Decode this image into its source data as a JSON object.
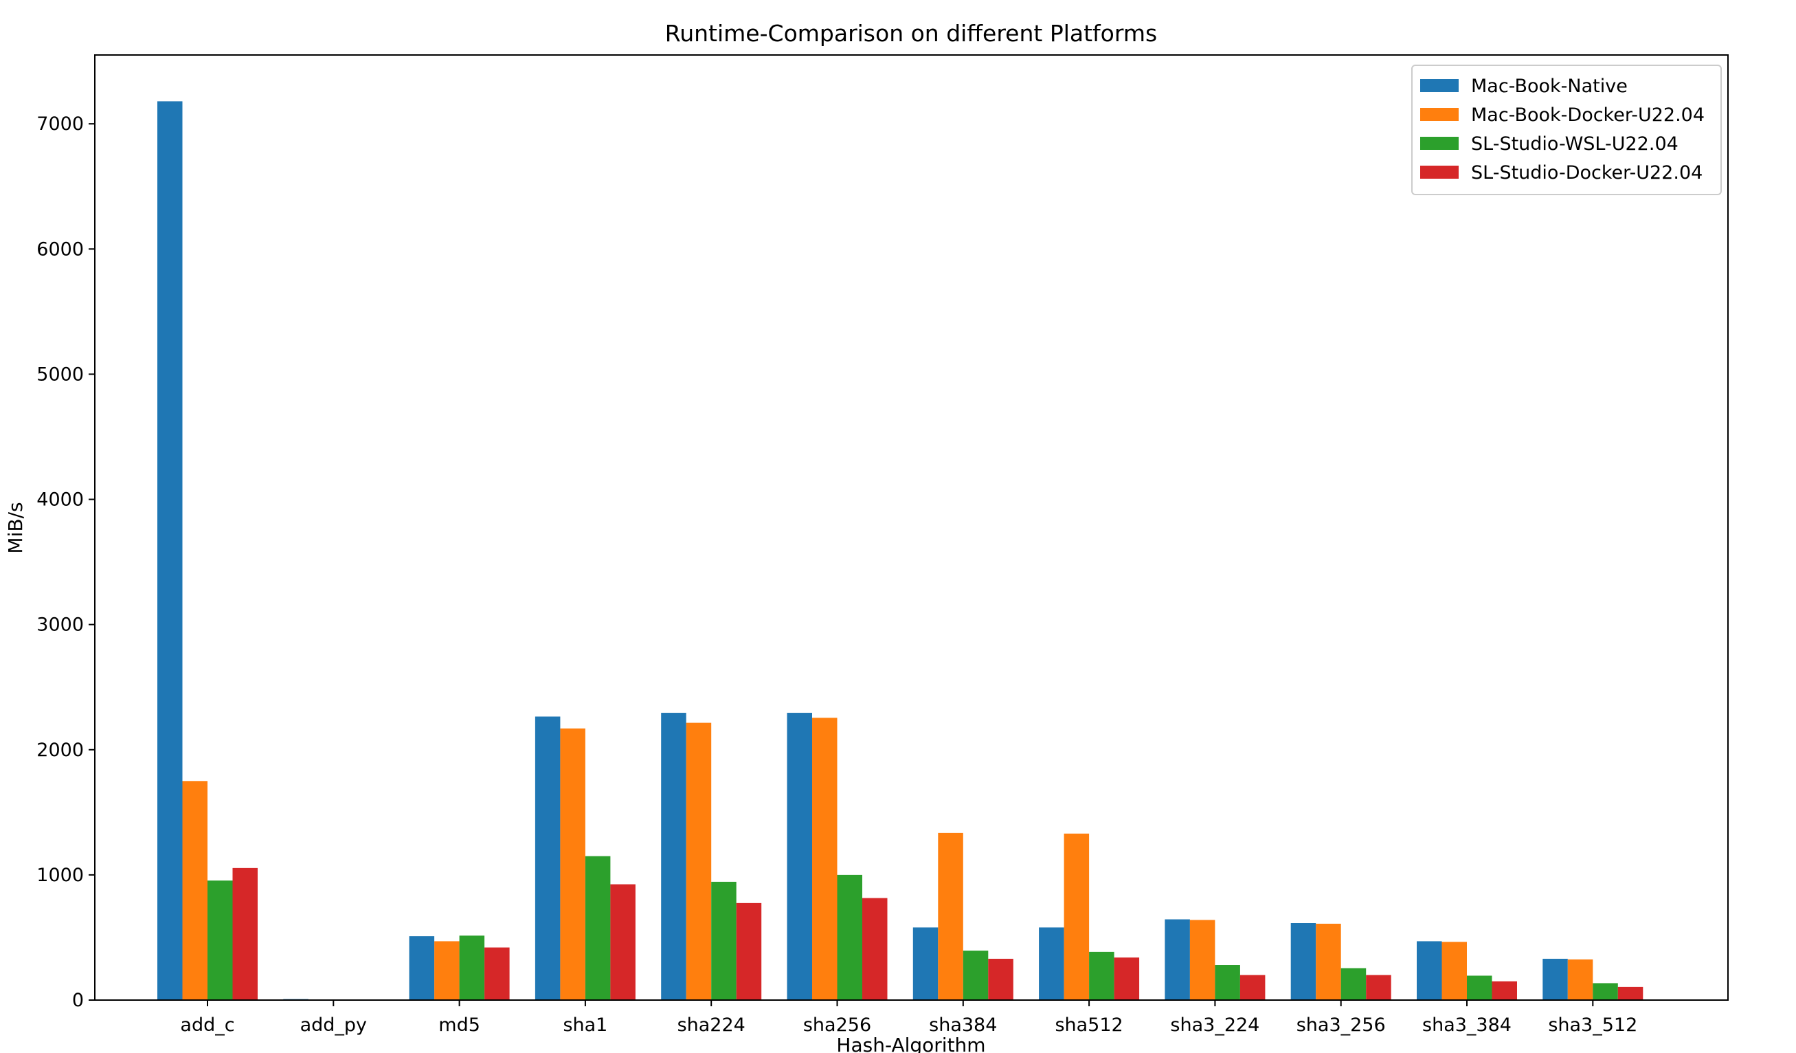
{
  "chart_data": {
    "type": "bar",
    "title": "Runtime-Comparison on different Platforms",
    "xlabel": "Hash-Algorithm",
    "ylabel": "MiB/s",
    "ylim": [
      0,
      7550
    ],
    "yticks": [
      0,
      1000,
      2000,
      3000,
      4000,
      5000,
      6000,
      7000
    ],
    "grid": false,
    "legend_position": "top-right",
    "categories": [
      "add_c",
      "add_py",
      "md5",
      "sha1",
      "sha224",
      "sha256",
      "sha384",
      "sha512",
      "sha3_224",
      "sha3_256",
      "sha3_384",
      "sha3_512"
    ],
    "series": [
      {
        "name": "Mac-Book-Native",
        "color": "#1f77b4",
        "values": [
          7180,
          8,
          510,
          2265,
          2295,
          2295,
          580,
          580,
          645,
          615,
          470,
          330
        ]
      },
      {
        "name": "Mac-Book-Docker-U22.04",
        "color": "#ff7f0e",
        "values": [
          1750,
          3,
          470,
          2170,
          2215,
          2255,
          1335,
          1330,
          640,
          610,
          465,
          325
        ]
      },
      {
        "name": "SL-Studio-WSL-U22.04",
        "color": "#2ca02c",
        "values": [
          955,
          2,
          515,
          1150,
          945,
          1000,
          395,
          385,
          280,
          255,
          195,
          135
        ]
      },
      {
        "name": "SL-Studio-Docker-U22.04",
        "color": "#d62728",
        "values": [
          1055,
          2,
          420,
          925,
          775,
          815,
          330,
          340,
          200,
          200,
          150,
          105
        ]
      }
    ]
  }
}
